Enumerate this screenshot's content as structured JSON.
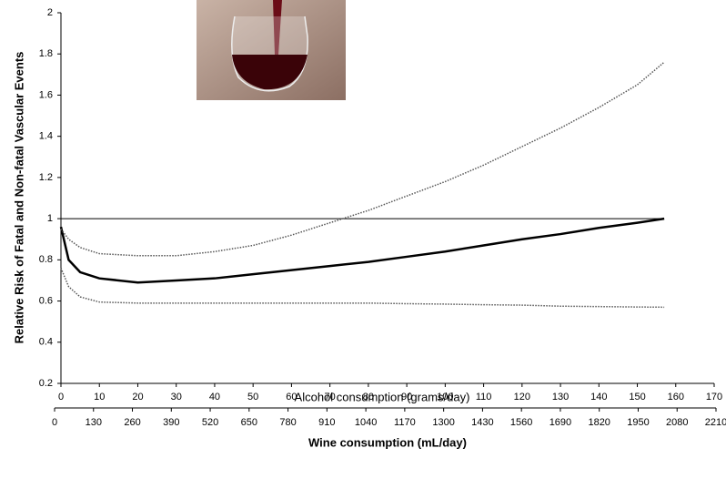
{
  "chart_data": {
    "type": "line",
    "y_label": "Relative Risk of Fatal and Non-fatal Vascular Events",
    "x_label": "Alcohol consumption (grams/day)",
    "x2_label": "Wine consumption (mL/day)",
    "x": [
      0,
      2,
      5,
      10,
      20,
      30,
      40,
      50,
      60,
      70,
      80,
      90,
      100,
      110,
      120,
      130,
      140,
      150,
      157
    ],
    "series": [
      {
        "color": "#000000",
        "style": "solid",
        "values": [
          0.96,
          0.8,
          0.74,
          0.71,
          0.69,
          0.7,
          0.71,
          0.73,
          0.75,
          0.77,
          0.79,
          0.815,
          0.84,
          0.87,
          0.9,
          0.925,
          0.955,
          0.98,
          1.0
        ]
      },
      {
        "color": "#555555",
        "style": "dotted",
        "values": [
          0.95,
          0.9,
          0.86,
          0.83,
          0.82,
          0.82,
          0.84,
          0.87,
          0.92,
          0.98,
          1.04,
          1.11,
          1.18,
          1.26,
          1.35,
          1.44,
          1.54,
          1.65,
          1.76
        ]
      },
      {
        "color": "#555555",
        "style": "dotted",
        "values": [
          0.76,
          0.67,
          0.62,
          0.595,
          0.59,
          0.59,
          0.59,
          0.59,
          0.59,
          0.59,
          0.59,
          0.587,
          0.585,
          0.582,
          0.58,
          0.575,
          0.573,
          0.571,
          0.57
        ]
      }
    ],
    "reference_line": 1,
    "xlim": [
      0,
      170
    ],
    "xticks": [
      0,
      10,
      20,
      30,
      40,
      50,
      60,
      70,
      80,
      90,
      100,
      110,
      120,
      130,
      140,
      150,
      160,
      170
    ],
    "ylim": [
      0.2,
      2
    ],
    "yticks": [
      0.2,
      0.4,
      0.6,
      0.8,
      1,
      1.2,
      1.4,
      1.6,
      1.8,
      2
    ],
    "x2lim": [
      0,
      2210
    ],
    "x2ticks": [
      0,
      130,
      260,
      390,
      520,
      650,
      780,
      910,
      1040,
      1170,
      1300,
      1430,
      1560,
      1690,
      1820,
      1950,
      2080,
      2210
    ]
  }
}
